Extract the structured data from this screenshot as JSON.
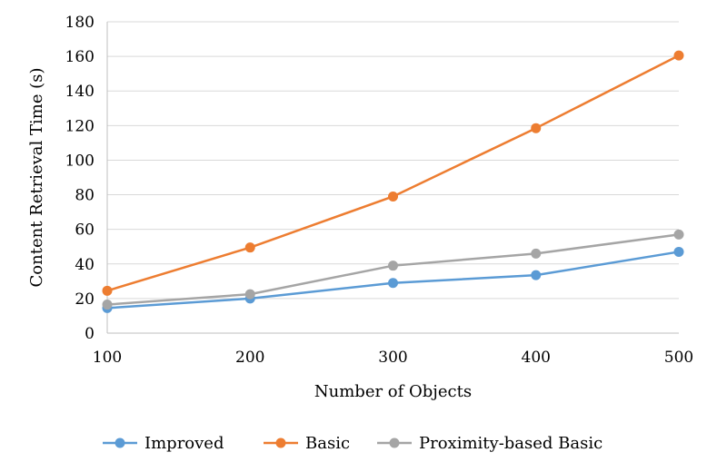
{
  "chart_data": {
    "type": "line",
    "title": "",
    "xlabel": "Number of Objects",
    "ylabel": "Content Retrieval Time (s)",
    "x": [
      100,
      200,
      300,
      400,
      500
    ],
    "xticks": [
      "100",
      "200",
      "300",
      "400",
      "500"
    ],
    "xlim": [
      100,
      500
    ],
    "ylim": [
      0,
      180
    ],
    "yticks": [
      "0",
      "20",
      "40",
      "60",
      "80",
      "100",
      "120",
      "140",
      "160",
      "180"
    ],
    "grid": "horizontal",
    "legend": "bottom",
    "series": [
      {
        "name": "Improved",
        "color": "#5B9BD5",
        "values": [
          14.5,
          20,
          29,
          33.5,
          47
        ]
      },
      {
        "name": "Basic",
        "color": "#ED7D31",
        "values": [
          24.5,
          49.5,
          79,
          118.5,
          160.5
        ]
      },
      {
        "name": "Proximity-based Basic",
        "color": "#A5A5A5",
        "values": [
          16.5,
          22.5,
          39,
          46,
          57
        ]
      }
    ]
  }
}
